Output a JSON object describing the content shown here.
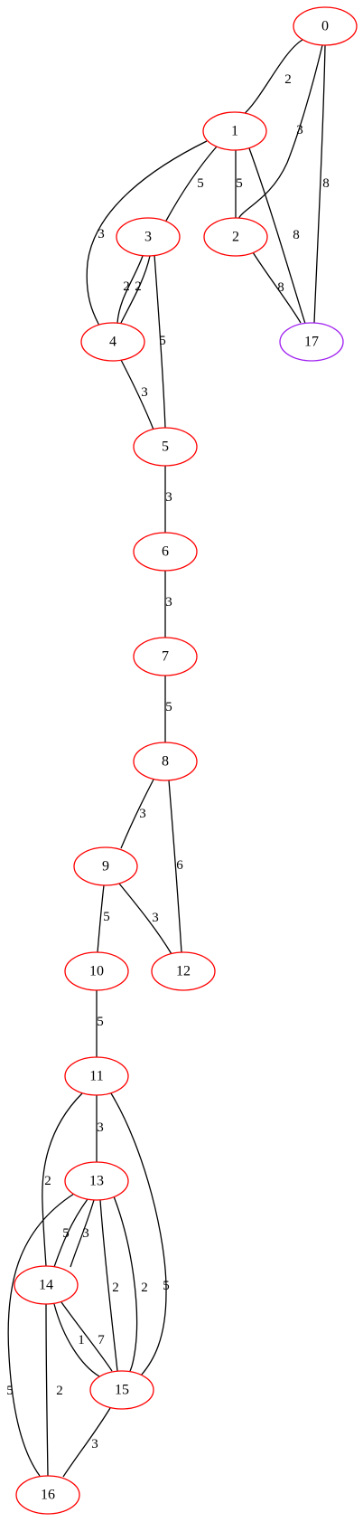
{
  "graph": {
    "colors": {
      "node_default": "#ff0000",
      "node_target": "#a020f0",
      "edge": "#000000"
    },
    "nodes": [
      {
        "id": "0",
        "label": "0",
        "color": "red"
      },
      {
        "id": "1",
        "label": "1",
        "color": "red"
      },
      {
        "id": "2",
        "label": "2",
        "color": "red"
      },
      {
        "id": "3",
        "label": "3",
        "color": "red"
      },
      {
        "id": "4",
        "label": "4",
        "color": "red"
      },
      {
        "id": "5",
        "label": "5",
        "color": "red"
      },
      {
        "id": "6",
        "label": "6",
        "color": "red"
      },
      {
        "id": "7",
        "label": "7",
        "color": "red"
      },
      {
        "id": "8",
        "label": "8",
        "color": "red"
      },
      {
        "id": "9",
        "label": "9",
        "color": "red"
      },
      {
        "id": "10",
        "label": "10",
        "color": "red"
      },
      {
        "id": "11",
        "label": "11",
        "color": "red"
      },
      {
        "id": "12",
        "label": "12",
        "color": "red"
      },
      {
        "id": "13",
        "label": "13",
        "color": "red"
      },
      {
        "id": "14",
        "label": "14",
        "color": "red"
      },
      {
        "id": "15",
        "label": "15",
        "color": "red"
      },
      {
        "id": "16",
        "label": "16",
        "color": "red"
      },
      {
        "id": "17",
        "label": "17",
        "color": "purple"
      }
    ],
    "edges": [
      {
        "id": "e0-1",
        "from": "0",
        "to": "1",
        "label": "2"
      },
      {
        "id": "e0-2",
        "from": "0",
        "to": "2",
        "label": "3"
      },
      {
        "id": "e0-17",
        "from": "0",
        "to": "17",
        "label": "8"
      },
      {
        "id": "e1-2",
        "from": "1",
        "to": "2",
        "label": "5"
      },
      {
        "id": "e1-3",
        "from": "1",
        "to": "3",
        "label": "5"
      },
      {
        "id": "e1-4",
        "from": "1",
        "to": "4",
        "label": "3"
      },
      {
        "id": "e1-17",
        "from": "1",
        "to": "17",
        "label": "8"
      },
      {
        "id": "e2-17",
        "from": "2",
        "to": "17",
        "label": "8"
      },
      {
        "id": "e3-4a",
        "from": "3",
        "to": "4",
        "label": "2"
      },
      {
        "id": "e3-4b",
        "from": "3",
        "to": "4",
        "label": "2"
      },
      {
        "id": "e3-5",
        "from": "3",
        "to": "5",
        "label": "5"
      },
      {
        "id": "e4-5",
        "from": "4",
        "to": "5",
        "label": "3"
      },
      {
        "id": "e5-6",
        "from": "5",
        "to": "6",
        "label": "3"
      },
      {
        "id": "e6-7",
        "from": "6",
        "to": "7",
        "label": "3"
      },
      {
        "id": "e7-8",
        "from": "7",
        "to": "8",
        "label": "5"
      },
      {
        "id": "e8-9",
        "from": "8",
        "to": "9",
        "label": "3"
      },
      {
        "id": "e8-12",
        "from": "8",
        "to": "12",
        "label": "6"
      },
      {
        "id": "e9-10",
        "from": "9",
        "to": "10",
        "label": "5"
      },
      {
        "id": "e9-12",
        "from": "9",
        "to": "12",
        "label": "3"
      },
      {
        "id": "e10-11",
        "from": "10",
        "to": "11",
        "label": "5"
      },
      {
        "id": "e11-13",
        "from": "11",
        "to": "13",
        "label": "3"
      },
      {
        "id": "e11-14",
        "from": "11",
        "to": "14",
        "label": "2"
      },
      {
        "id": "e11-15",
        "from": "11",
        "to": "15",
        "label": "5"
      },
      {
        "id": "e13-14a",
        "from": "13",
        "to": "14",
        "label": "5"
      },
      {
        "id": "e13-14b",
        "from": "13",
        "to": "14",
        "label": "3"
      },
      {
        "id": "e13-15a",
        "from": "13",
        "to": "15",
        "label": "2"
      },
      {
        "id": "e13-15b",
        "from": "13",
        "to": "15",
        "label": "2"
      },
      {
        "id": "e13-16",
        "from": "13",
        "to": "16",
        "label": "5"
      },
      {
        "id": "e14-15a",
        "from": "14",
        "to": "15",
        "label": "1"
      },
      {
        "id": "e14-15b",
        "from": "14",
        "to": "15",
        "label": "7"
      },
      {
        "id": "e14-16",
        "from": "14",
        "to": "16",
        "label": "2"
      },
      {
        "id": "e15-16",
        "from": "15",
        "to": "16",
        "label": "3"
      }
    ]
  }
}
